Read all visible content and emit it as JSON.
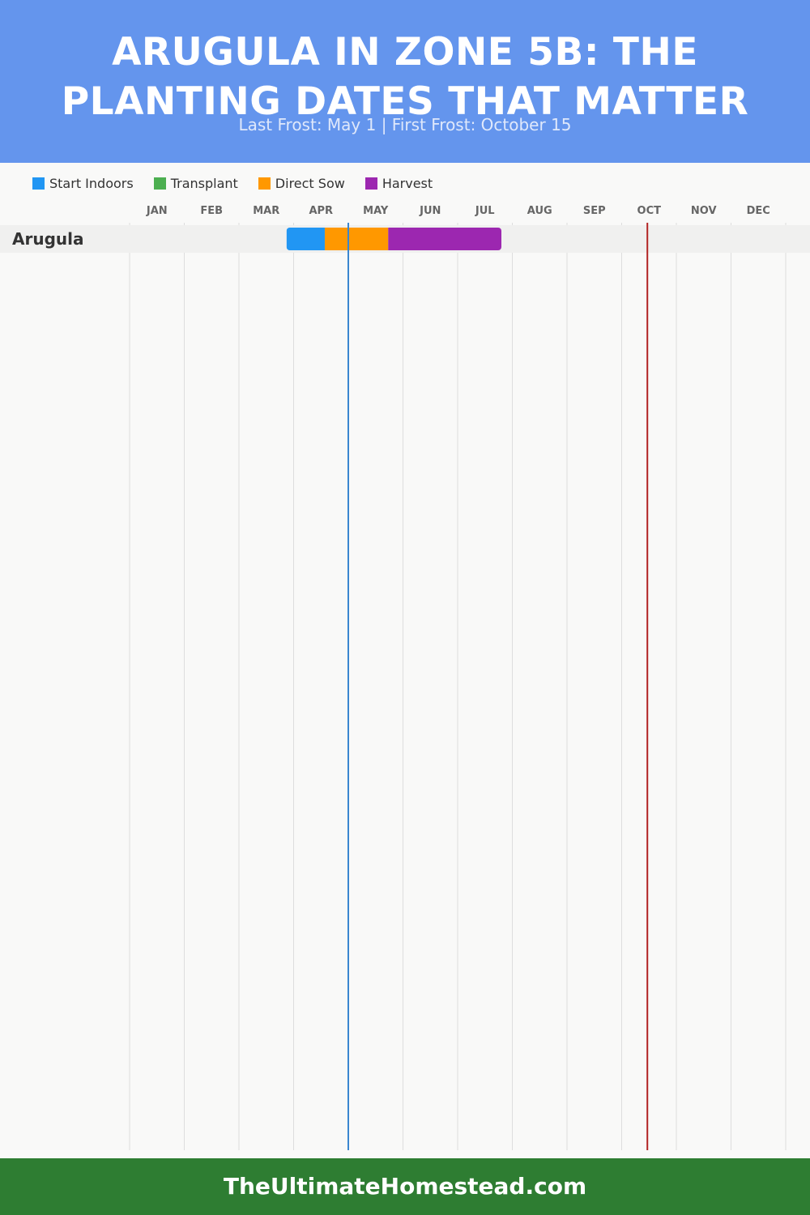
{
  "header": {
    "title": "ARUGULA IN ZONE 5B: THE PLANTING DATES THAT MATTER",
    "subtitle": "Last Frost: May 1 | First Frost: October 15"
  },
  "footer": {
    "site": "TheUltimateHomestead.com"
  },
  "colors": {
    "header_bg": "#6495ed",
    "footer_bg": "#2e7d32",
    "last_frost_line": "#3a86d0",
    "first_frost_line": "#b22222"
  },
  "chart_data": {
    "type": "gantt",
    "months": [
      "JAN",
      "FEB",
      "MAR",
      "APR",
      "MAY",
      "JUN",
      "JUL",
      "AUG",
      "SEP",
      "OCT",
      "NOV",
      "DEC"
    ],
    "legend": [
      {
        "label": "Start Indoors",
        "color": "#2196f3"
      },
      {
        "label": "Transplant",
        "color": "#4caf50"
      },
      {
        "label": "Direct Sow",
        "color": "#ff9800"
      },
      {
        "label": "Harvest",
        "color": "#9c27b0"
      }
    ],
    "crops": [
      {
        "name": "Arugula",
        "segments": [
          {
            "phase": "Start Indoors",
            "start_month": 3.87,
            "end_month": 4.57
          },
          {
            "phase": "Direct Sow",
            "start_month": 4.57,
            "end_month": 5.73
          },
          {
            "phase": "Harvest",
            "start_month": 5.73,
            "end_month": 7.8
          }
        ]
      }
    ],
    "frost_lines": [
      {
        "label": "Last Frost",
        "month": 5.0
      },
      {
        "label": "First Frost",
        "month": 10.47
      }
    ]
  }
}
